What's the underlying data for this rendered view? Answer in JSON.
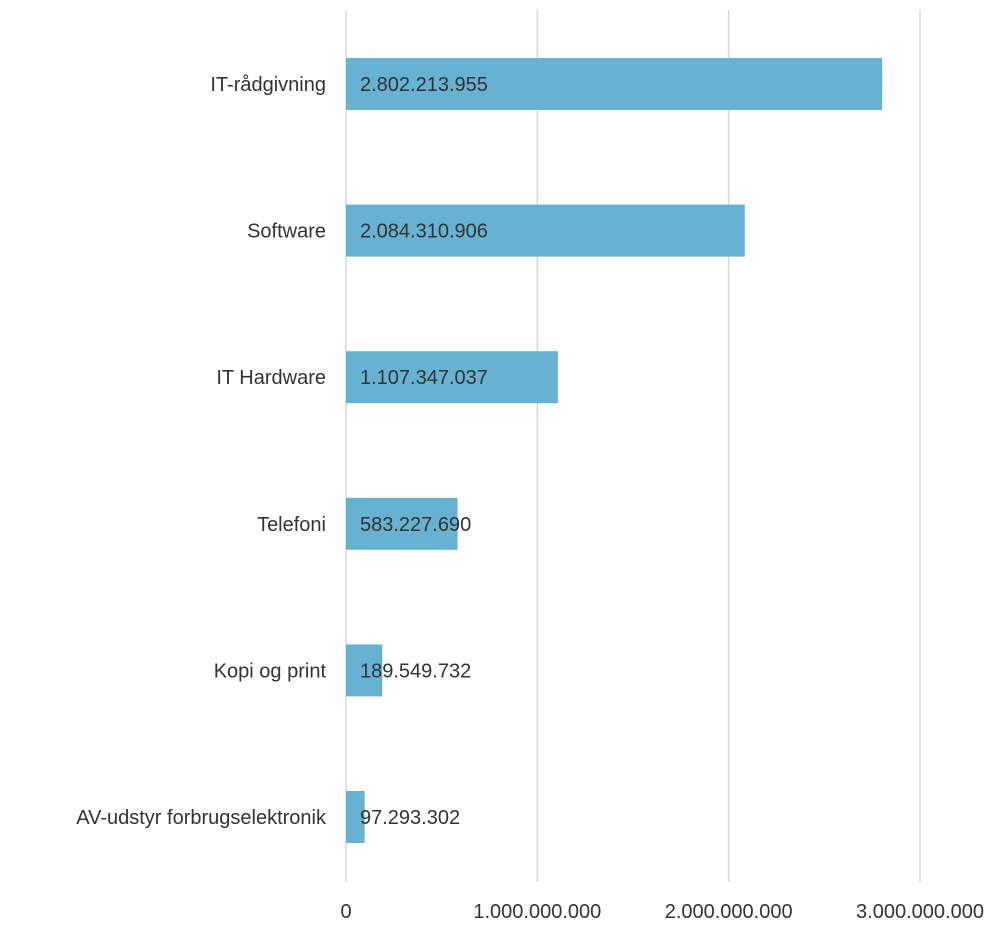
{
  "chart_data": {
    "type": "bar",
    "orientation": "horizontal",
    "categories": [
      "IT-rådgivning",
      "Software",
      "IT Hardware",
      "Telefoni",
      "Kopi og print",
      "AV-udstyr forbrugselektronik"
    ],
    "values": [
      2802213955,
      2084310906,
      1107347037,
      583227690,
      189549732,
      97293302
    ],
    "value_labels": [
      "2.802.213.955",
      "2.084.310.906",
      "1.107.347.037",
      "583.227.690",
      "189.549.732",
      "97.293.302"
    ],
    "x_ticks": [
      0,
      1000000000,
      2000000000,
      3000000000
    ],
    "x_tick_labels": [
      "0",
      "1.000.000.000",
      "2.000.000.000",
      "3.000.000.000"
    ],
    "xlim": [
      0,
      3000000000
    ],
    "title": "",
    "xlabel": "",
    "ylabel": "",
    "grid": "vertical",
    "legend": "none",
    "bar_color": "#67b1d3",
    "grid_color": "#d9d9d9",
    "text_color": "#333333"
  }
}
